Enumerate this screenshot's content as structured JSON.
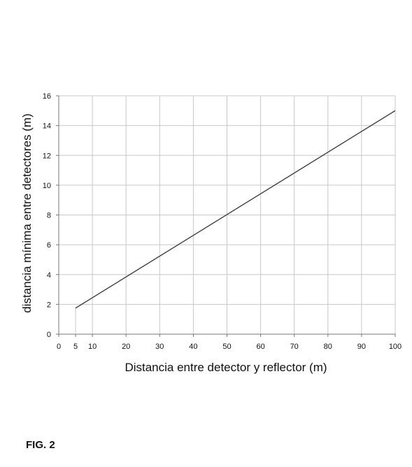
{
  "figure_label": "FIG. 2",
  "chart_data": {
    "type": "line",
    "xlabel": "Distancia entre detector y reflector (m)",
    "ylabel": "distancia mínima entre detectores (m)",
    "xlim": [
      0,
      100
    ],
    "ylim": [
      0,
      16
    ],
    "x_ticks": [
      0,
      5,
      10,
      20,
      30,
      40,
      50,
      60,
      70,
      80,
      90,
      100
    ],
    "x_gridlines": [
      10,
      20,
      30,
      40,
      50,
      60,
      70,
      80,
      90,
      100
    ],
    "y_ticks": [
      0,
      2,
      4,
      6,
      8,
      10,
      12,
      14,
      16
    ],
    "grid": true,
    "legend": "none",
    "series": [
      {
        "x": [
          5,
          100
        ],
        "y": [
          1.75,
          15.0
        ]
      }
    ],
    "drop_line_at_x": 5,
    "colors": {
      "line": "#333333",
      "grid": "#c8c8c8",
      "axis": "#777777"
    }
  }
}
